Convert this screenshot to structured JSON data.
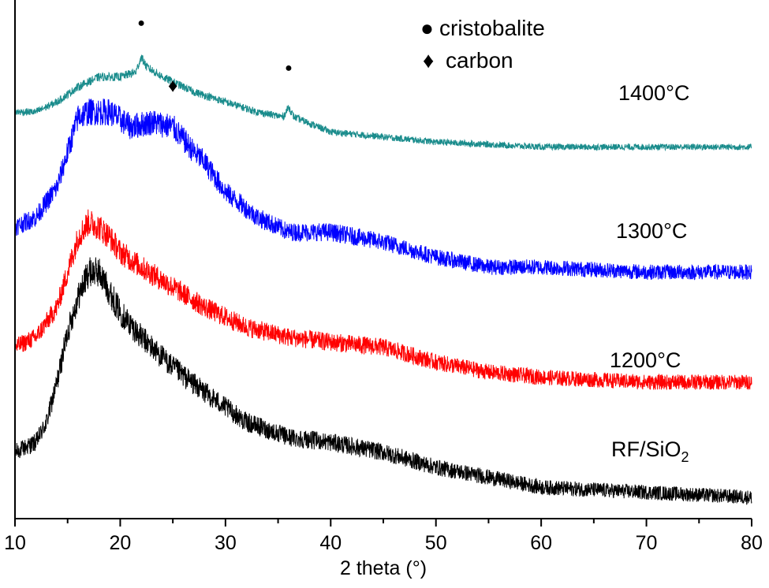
{
  "chart_data": {
    "type": "line",
    "title": "",
    "xlabel": "2 theta (°)",
    "ylabel": "",
    "xlim": [
      10,
      80
    ],
    "ylim": [
      0,
      100
    ],
    "x_ticks": [
      "10",
      "20",
      "30",
      "40",
      "50",
      "60",
      "70",
      "80"
    ],
    "y_axis_ticks_shown": false,
    "series": [
      {
        "name": "RF/SiO",
        "name_subscript": "2",
        "color": "#000000",
        "points": [
          [
            10,
            12
          ],
          [
            11,
            13
          ],
          [
            12,
            14
          ],
          [
            13,
            18
          ],
          [
            14,
            26
          ],
          [
            15,
            36
          ],
          [
            16,
            43
          ],
          [
            17,
            48
          ],
          [
            18,
            48
          ],
          [
            19,
            44
          ],
          [
            20,
            40
          ],
          [
            22,
            35
          ],
          [
            25,
            29
          ],
          [
            28,
            24
          ],
          [
            32,
            18
          ],
          [
            36,
            15
          ],
          [
            40,
            14
          ],
          [
            45,
            12
          ],
          [
            50,
            9
          ],
          [
            55,
            7
          ],
          [
            60,
            5
          ],
          [
            70,
            4
          ],
          [
            80,
            3
          ]
        ]
      },
      {
        "name": "1200°C",
        "color": "#ff0000",
        "points": [
          [
            10,
            33
          ],
          [
            12,
            35
          ],
          [
            14,
            41
          ],
          [
            15,
            48
          ],
          [
            16,
            55
          ],
          [
            17,
            58
          ],
          [
            18,
            57
          ],
          [
            19,
            55
          ],
          [
            20,
            52
          ],
          [
            22,
            49
          ],
          [
            25,
            45
          ],
          [
            28,
            41
          ],
          [
            32,
            37
          ],
          [
            36,
            35
          ],
          [
            40,
            34
          ],
          [
            45,
            33
          ],
          [
            50,
            30
          ],
          [
            55,
            28
          ],
          [
            60,
            27
          ],
          [
            70,
            26
          ],
          [
            80,
            26
          ]
        ]
      },
      {
        "name": "1300°C",
        "color": "#0000ff",
        "points": [
          [
            10,
            57
          ],
          [
            12,
            59
          ],
          [
            14,
            65
          ],
          [
            15,
            72
          ],
          [
            16,
            79
          ],
          [
            17,
            80
          ],
          [
            19,
            80
          ],
          [
            21,
            77
          ],
          [
            23,
            78
          ],
          [
            25,
            77
          ],
          [
            27,
            72
          ],
          [
            28,
            70
          ],
          [
            30,
            64
          ],
          [
            33,
            59
          ],
          [
            36,
            56
          ],
          [
            40,
            56
          ],
          [
            45,
            54
          ],
          [
            50,
            51
          ],
          [
            55,
            49
          ],
          [
            60,
            49
          ],
          [
            70,
            48
          ],
          [
            80,
            48
          ]
        ]
      },
      {
        "name": "1400°C",
        "color": "#1a8c8c",
        "points": [
          [
            10,
            80
          ],
          [
            12,
            80
          ],
          [
            14,
            82
          ],
          [
            16,
            85
          ],
          [
            18,
            87
          ],
          [
            20,
            87
          ],
          [
            21.5,
            88
          ],
          [
            22,
            91
          ],
          [
            22.5,
            89
          ],
          [
            24,
            87
          ],
          [
            27,
            84
          ],
          [
            30,
            82
          ],
          [
            33,
            80
          ],
          [
            35.5,
            79
          ],
          [
            36,
            81
          ],
          [
            36.5,
            79
          ],
          [
            40,
            76
          ],
          [
            45,
            75
          ],
          [
            50,
            74
          ],
          [
            60,
            73
          ],
          [
            70,
            73
          ],
          [
            80,
            73
          ]
        ]
      }
    ],
    "annotations": [
      {
        "marker": "●",
        "x": 22,
        "y": 97,
        "label": "cristobalite"
      },
      {
        "marker": "●",
        "x": 36,
        "y": 88,
        "label": "cristobalite"
      },
      {
        "marker": "♦",
        "x": 25,
        "y": 84,
        "label": "carbon"
      }
    ],
    "legend": {
      "placement": "top-center",
      "entries": [
        {
          "marker": "●",
          "label": "cristobalite"
        },
        {
          "marker": "♦",
          "label": "carbon"
        }
      ]
    }
  }
}
